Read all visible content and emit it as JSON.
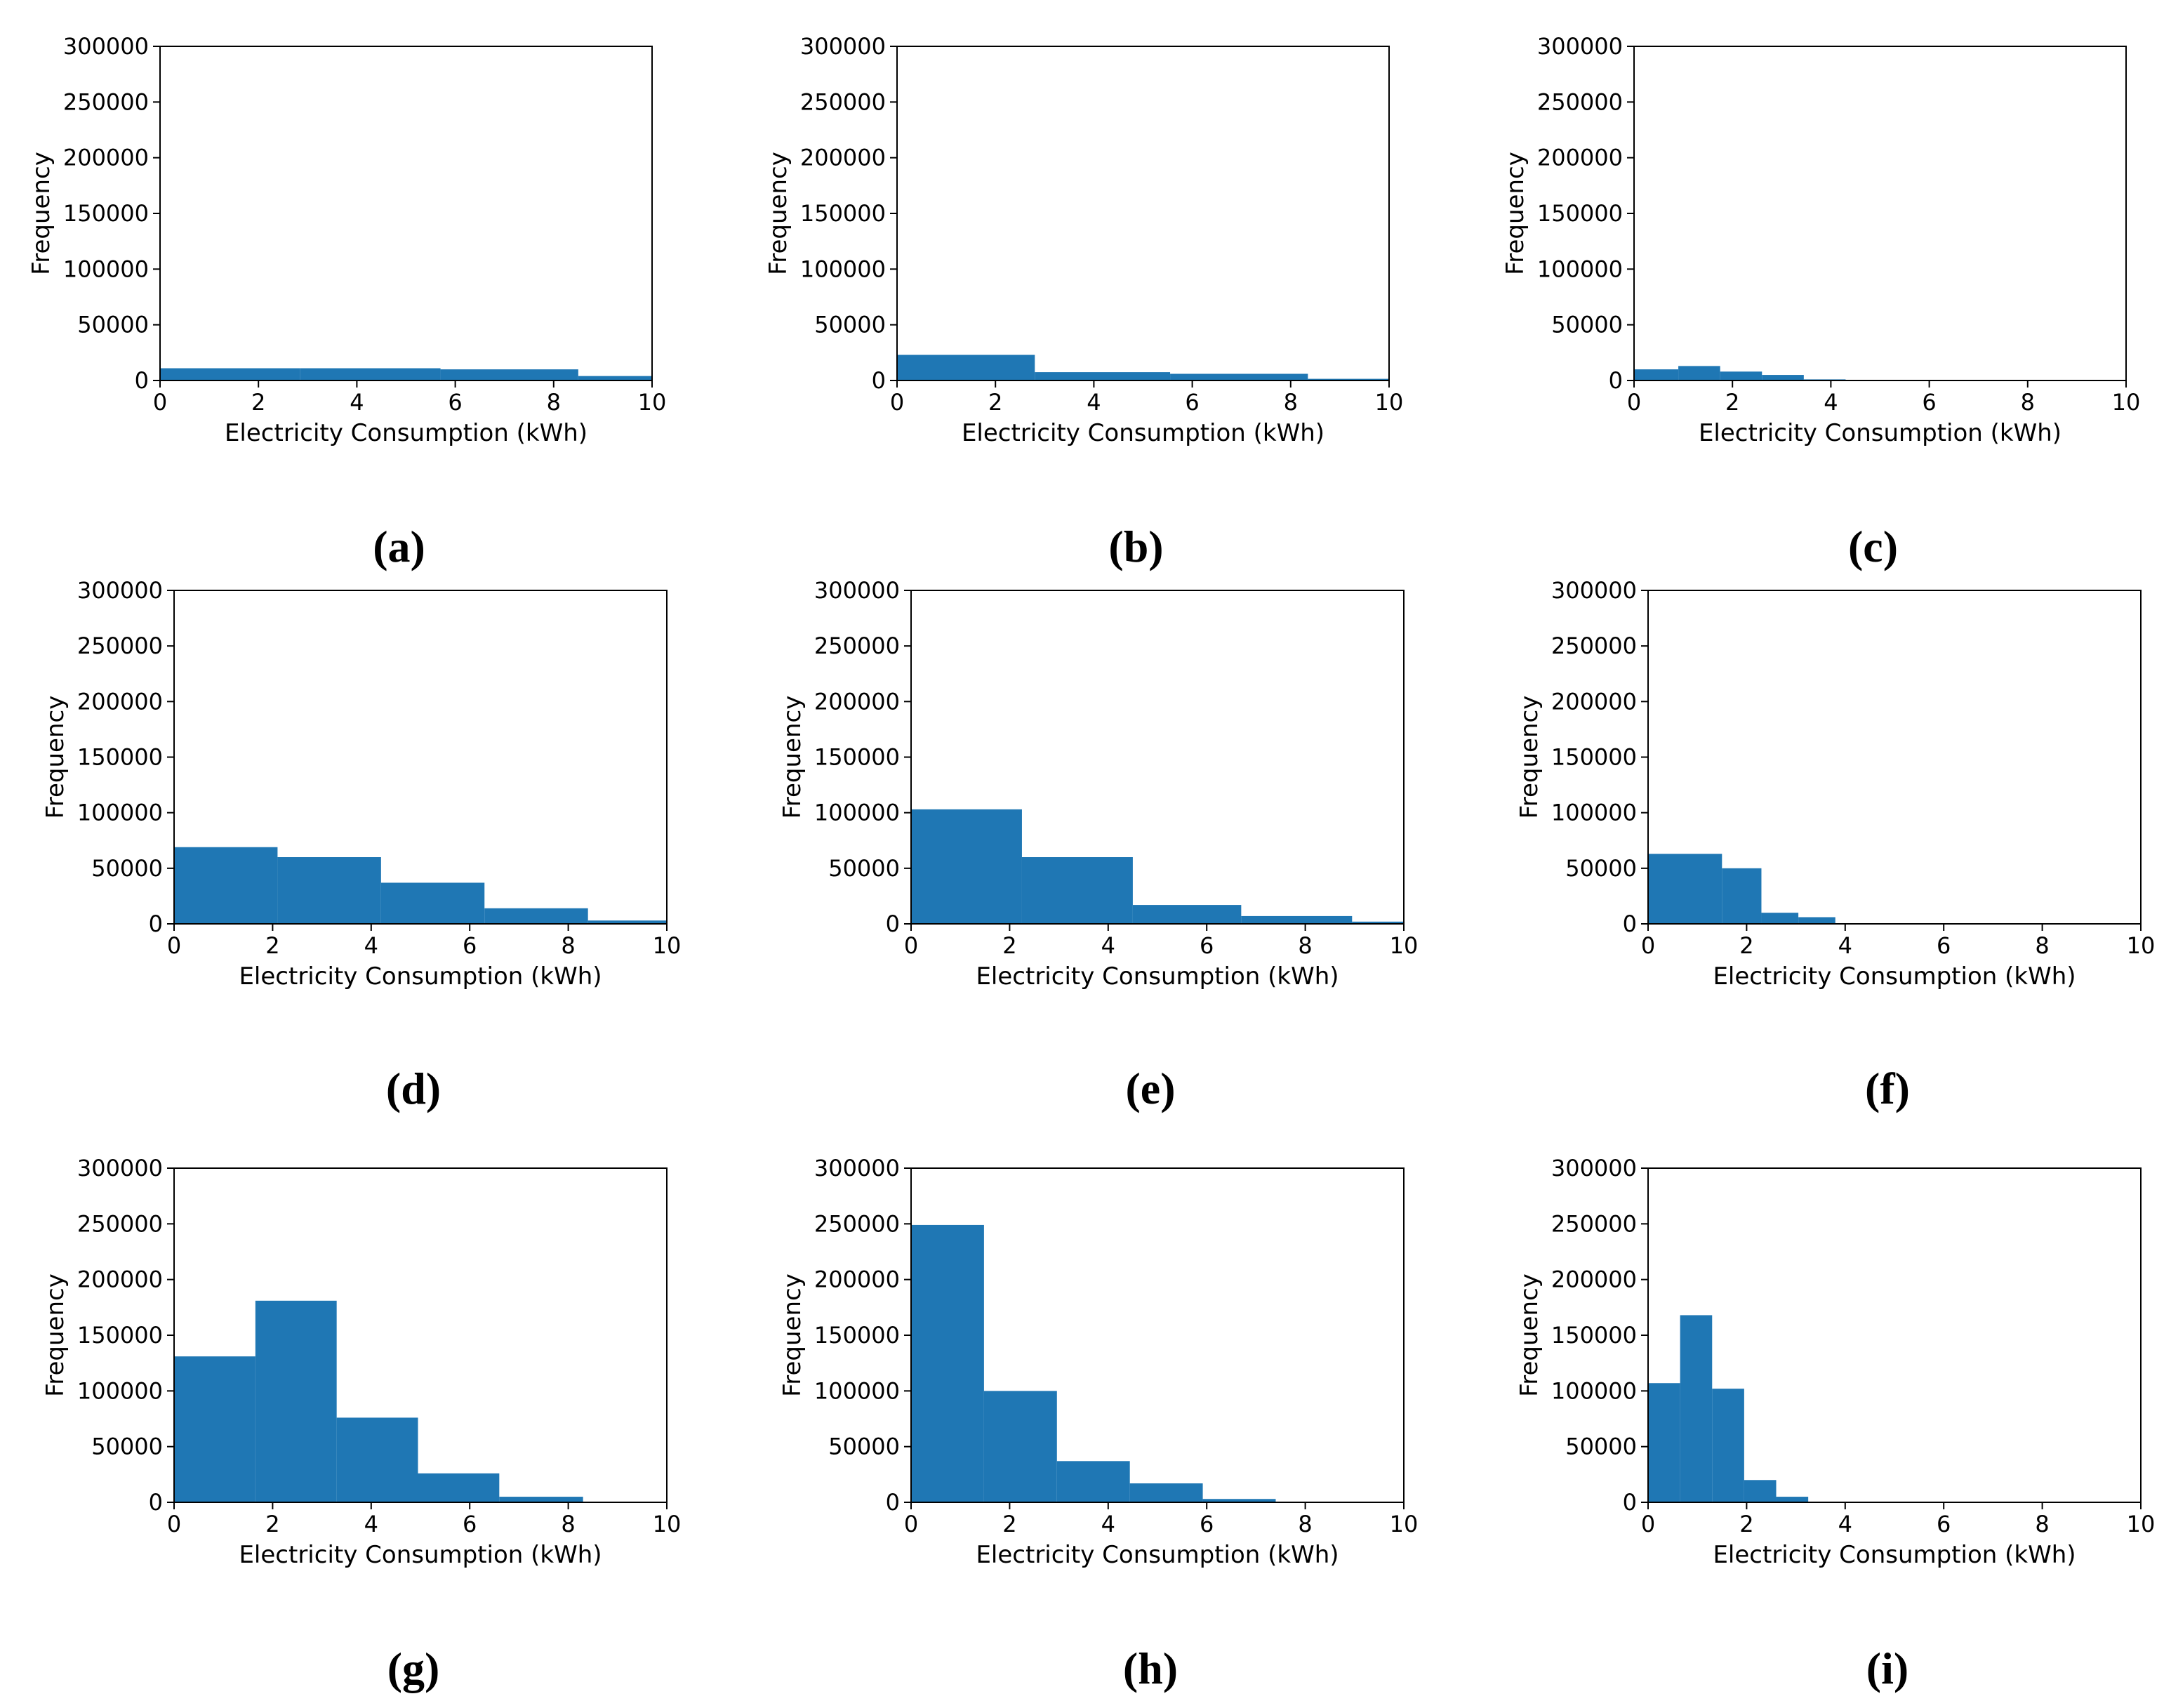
{
  "chart_data": [
    {
      "panel": "a",
      "type": "bar",
      "xlabel": "Electricity Consumption (kWh)",
      "ylabel": "Frequency",
      "xlim": [
        0,
        10
      ],
      "ylim": [
        0,
        300000
      ],
      "xticks": [
        "0",
        "2",
        "4",
        "6",
        "8",
        "10"
      ],
      "yticks": [
        "0",
        "50000",
        "100000",
        "150000",
        "200000",
        "250000",
        "300000"
      ],
      "bins": [
        [
          0,
          2.85,
          11000
        ],
        [
          2.85,
          5.7,
          11000
        ],
        [
          5.7,
          8.5,
          10000
        ],
        [
          8.5,
          10,
          4000
        ]
      ]
    },
    {
      "panel": "b",
      "type": "bar",
      "xlabel": "Electricity Consumption (kWh)",
      "ylabel": "Frequency",
      "xlim": [
        0,
        10
      ],
      "ylim": [
        0,
        300000
      ],
      "xticks": [
        "0",
        "2",
        "4",
        "6",
        "8",
        "10"
      ],
      "yticks": [
        "0",
        "50000",
        "100000",
        "150000",
        "200000",
        "250000",
        "300000"
      ],
      "bins": [
        [
          0,
          2.8,
          23000
        ],
        [
          2.8,
          5.55,
          7500
        ],
        [
          5.55,
          8.35,
          6000
        ],
        [
          8.35,
          10,
          1500
        ]
      ]
    },
    {
      "panel": "c",
      "type": "bar",
      "xlabel": "Electricity Consumption (kWh)",
      "ylabel": "Frequency",
      "xlim": [
        0,
        10
      ],
      "ylim": [
        0,
        300000
      ],
      "xticks": [
        "0",
        "2",
        "4",
        "6",
        "8",
        "10"
      ],
      "yticks": [
        "0",
        "50000",
        "100000",
        "150000",
        "200000",
        "250000",
        "300000"
      ],
      "bins": [
        [
          0,
          0.9,
          10000
        ],
        [
          0.9,
          1.75,
          13000
        ],
        [
          1.75,
          2.6,
          8000
        ],
        [
          2.6,
          3.45,
          5000
        ],
        [
          3.45,
          4.3,
          1000
        ]
      ]
    },
    {
      "panel": "d",
      "type": "bar",
      "xlabel": "Electricity Consumption (kWh)",
      "ylabel": "Frequency",
      "xlim": [
        0,
        10
      ],
      "ylim": [
        0,
        300000
      ],
      "xticks": [
        "0",
        "2",
        "4",
        "6",
        "8",
        "10"
      ],
      "yticks": [
        "0",
        "50000",
        "100000",
        "150000",
        "200000",
        "250000",
        "300000"
      ],
      "bins": [
        [
          0,
          2.1,
          69000
        ],
        [
          2.1,
          4.2,
          60000
        ],
        [
          4.2,
          6.3,
          37000
        ],
        [
          6.3,
          8.4,
          14000
        ],
        [
          8.4,
          10,
          3000
        ]
      ]
    },
    {
      "panel": "e",
      "type": "bar",
      "xlabel": "Electricity Consumption (kWh)",
      "ylabel": "Frequency",
      "xlim": [
        0,
        10
      ],
      "ylim": [
        0,
        300000
      ],
      "xticks": [
        "0",
        "2",
        "4",
        "6",
        "8",
        "10"
      ],
      "yticks": [
        "0",
        "50000",
        "100000",
        "150000",
        "200000",
        "250000",
        "300000"
      ],
      "bins": [
        [
          0,
          2.25,
          103000
        ],
        [
          2.25,
          4.5,
          60000
        ],
        [
          4.5,
          6.7,
          17000
        ],
        [
          6.7,
          8.95,
          7000
        ],
        [
          8.95,
          10,
          2000
        ]
      ]
    },
    {
      "panel": "f",
      "type": "bar",
      "xlabel": "Electricity Consumption (kWh)",
      "ylabel": "Frequency",
      "xlim": [
        0,
        10
      ],
      "ylim": [
        0,
        300000
      ],
      "xticks": [
        "0",
        "2",
        "4",
        "6",
        "8",
        "10"
      ],
      "yticks": [
        "0",
        "50000",
        "100000",
        "150000",
        "200000",
        "250000",
        "300000"
      ],
      "bins": [
        [
          0,
          1.5,
          63000
        ],
        [
          1.5,
          2.3,
          50000
        ],
        [
          2.3,
          3.05,
          10000
        ],
        [
          3.05,
          3.8,
          6000
        ]
      ]
    },
    {
      "panel": "g",
      "type": "bar",
      "xlabel": "Electricity Consumption (kWh)",
      "ylabel": "Frequency",
      "xlim": [
        0,
        10
      ],
      "ylim": [
        0,
        300000
      ],
      "xticks": [
        "0",
        "2",
        "4",
        "6",
        "8",
        "10"
      ],
      "yticks": [
        "0",
        "50000",
        "100000",
        "150000",
        "200000",
        "250000",
        "300000"
      ],
      "bins": [
        [
          0,
          1.65,
          131000
        ],
        [
          1.65,
          3.3,
          181000
        ],
        [
          3.3,
          4.95,
          76000
        ],
        [
          4.95,
          6.6,
          26000
        ],
        [
          6.6,
          8.3,
          5000
        ]
      ]
    },
    {
      "panel": "h",
      "type": "bar",
      "xlabel": "Electricity Consumption (kWh)",
      "ylabel": "Frequency",
      "xlim": [
        0,
        10
      ],
      "ylim": [
        0,
        300000
      ],
      "xticks": [
        "0",
        "2",
        "4",
        "6",
        "8",
        "10"
      ],
      "yticks": [
        "0",
        "50000",
        "100000",
        "150000",
        "200000",
        "250000",
        "300000"
      ],
      "bins": [
        [
          0,
          1.48,
          249000
        ],
        [
          1.48,
          2.96,
          100000
        ],
        [
          2.96,
          4.44,
          37000
        ],
        [
          4.44,
          5.92,
          17000
        ],
        [
          5.92,
          7.4,
          3000
        ]
      ]
    },
    {
      "panel": "i",
      "type": "bar",
      "xlabel": "Electricity Consumption (kWh)",
      "ylabel": "Frequency",
      "xlim": [
        0,
        10
      ],
      "ylim": [
        0,
        300000
      ],
      "xticks": [
        "0",
        "2",
        "4",
        "6",
        "8",
        "10"
      ],
      "yticks": [
        "0",
        "50000",
        "100000",
        "150000",
        "200000",
        "250000",
        "300000"
      ],
      "bins": [
        [
          0,
          0.65,
          107000
        ],
        [
          0.65,
          1.3,
          168000
        ],
        [
          1.3,
          1.95,
          102000
        ],
        [
          1.95,
          2.6,
          20000
        ],
        [
          2.6,
          3.25,
          5000
        ]
      ]
    }
  ],
  "captions": [
    "(a)",
    "(b)",
    "(c)",
    "(d)",
    "(e)",
    "(f)",
    "(g)",
    "(h)",
    "(i)"
  ],
  "colors": {
    "bar": "#1f77b4",
    "axis": "#000000",
    "background": "#ffffff"
  }
}
